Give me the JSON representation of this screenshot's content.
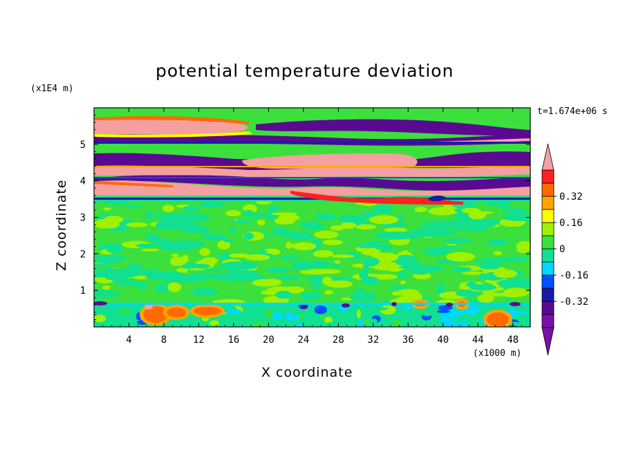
{
  "chart_data": {
    "type": "heatmap",
    "title": "potential temperature deviation",
    "xlabel": "X coordinate",
    "ylabel": "Z coordinate",
    "x_multiplier": "(x1000 m)",
    "y_multiplier": "(x1E4 m)",
    "time_label": "t=1.674e+06 s",
    "xlim": [
      0,
      50
    ],
    "ylim": [
      0,
      6
    ],
    "x_ticks": [
      "4",
      "8",
      "12",
      "16",
      "20",
      "24",
      "28",
      "32",
      "36",
      "40",
      "44",
      "48"
    ],
    "x_tick_values": [
      4,
      8,
      12,
      16,
      20,
      24,
      28,
      32,
      36,
      40,
      44,
      48
    ],
    "y_ticks": [
      "1",
      "2",
      "3",
      "4",
      "5"
    ],
    "y_tick_values": [
      1,
      2,
      3,
      4,
      5
    ],
    "colorbar": {
      "levels": [
        -0.48,
        -0.4,
        -0.32,
        -0.24,
        -0.16,
        -0.08,
        0,
        0.08,
        0.16,
        0.24,
        0.32,
        0.4,
        0.48
      ],
      "labels": [
        "0.32",
        "0.16",
        "0",
        "-0.16",
        "-0.32"
      ],
      "label_values": [
        0.32,
        0.16,
        0,
        -0.16,
        -0.32
      ],
      "colors": [
        "#7a10a8",
        "#5a0a90",
        "#1a1aa8",
        "#0050ff",
        "#00d8ff",
        "#10e090",
        "#3ce03c",
        "#a0f000",
        "#ffff00",
        "#ffa500",
        "#ff6a00",
        "#ff2020",
        "#f4a0a0"
      ],
      "extend": "both"
    },
    "bands": [
      {
        "z_range": [
          5.2,
          5.6
        ],
        "sign": "positive",
        "dominant": "#f4a0a0"
      },
      {
        "z_range": [
          4.9,
          5.2
        ],
        "sign": "negative",
        "dominant": "#5a0a90"
      },
      {
        "z_range": [
          4.25,
          4.6
        ],
        "sign": "mixed",
        "dominant": "#5a0a90"
      },
      {
        "z_range": [
          3.9,
          4.25
        ],
        "sign": "mixed",
        "dominant": "#f4a0a0"
      },
      {
        "z_range": [
          3.5,
          3.9
        ],
        "sign": "mixed",
        "dominant": "#f4a0a0"
      },
      {
        "z_range": [
          0.6,
          3.5
        ],
        "sign": "near-zero",
        "dominant": "#3ce03c"
      },
      {
        "z_range": [
          0.0,
          0.6
        ],
        "sign": "mixed",
        "dominant": "#10e090"
      }
    ],
    "grid": false,
    "legend": "right colorbar"
  }
}
